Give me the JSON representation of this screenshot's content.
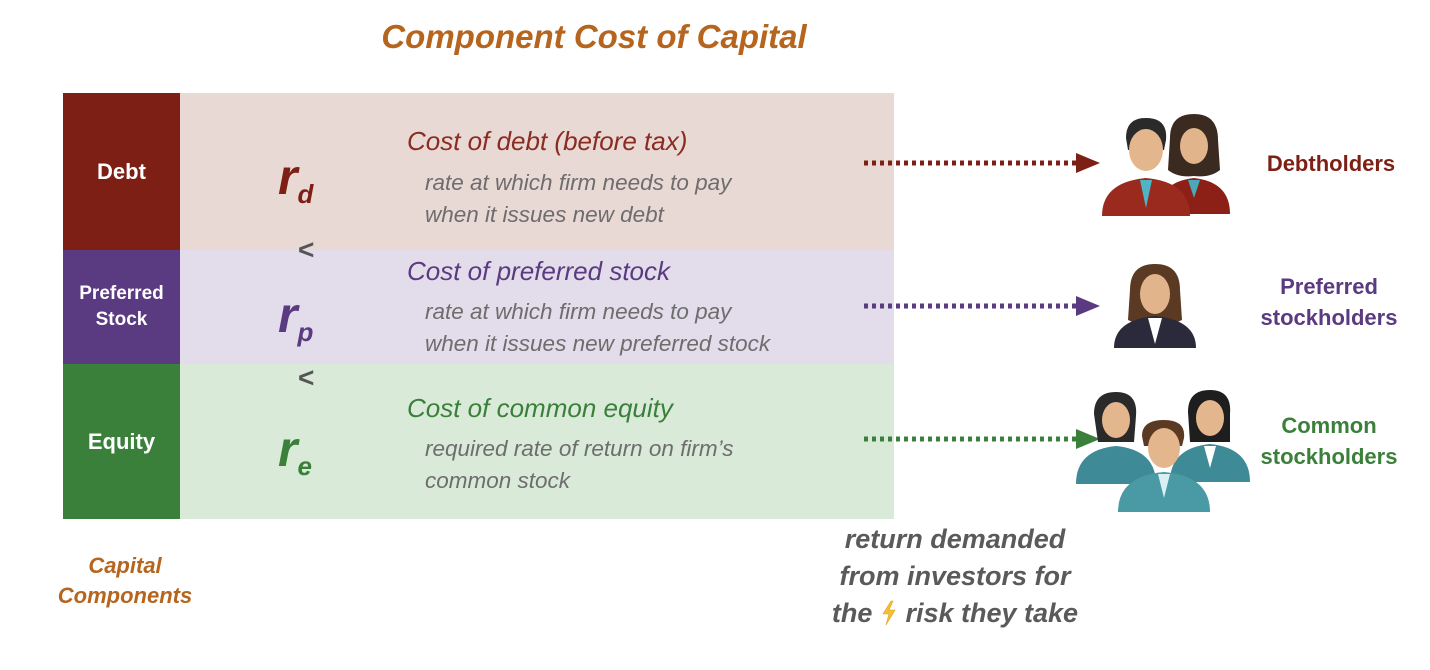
{
  "title": "Component Cost of Capital",
  "components": [
    {
      "label": "Debt",
      "symbol": "r",
      "subscript": "d",
      "cost_title": "Cost of debt (before tax)",
      "desc_line1": "rate at which firm needs to pay",
      "desc_line2": "when it issues new debt",
      "holder_line1": "Debtholders",
      "color": "#7d1f15",
      "band_color": "#e9d9d5"
    },
    {
      "label_line1": "Preferred",
      "label_line2": "Stock",
      "symbol": "r",
      "subscript": "p",
      "cost_title": "Cost of preferred stock",
      "desc_line1": "rate at which firm needs to pay",
      "desc_line2": "when it issues new preferred stock",
      "holder_line1": "Preferred",
      "holder_line2": "stockholders",
      "color": "#5a3a80",
      "band_color": "#e3dcea"
    },
    {
      "label": "Equity",
      "symbol": "r",
      "subscript": "e",
      "cost_title": "Cost of common equity",
      "desc_line1": "required rate of return on firm’s",
      "desc_line2": "common stock",
      "holder_line1": "Common",
      "holder_line2": "stockholders",
      "color": "#3a7f3a",
      "band_color": "#d9ead9"
    }
  ],
  "less_than": "<",
  "capital_components_line1": "Capital",
  "capital_components_line2": "Components",
  "return_line1": "return demanded",
  "return_line2": "from investors for",
  "return_line3_pre": "the",
  "return_line3_post": "risk they take",
  "bolt_icon": "lightning-bolt-icon",
  "people_icon": "people-group-icon"
}
